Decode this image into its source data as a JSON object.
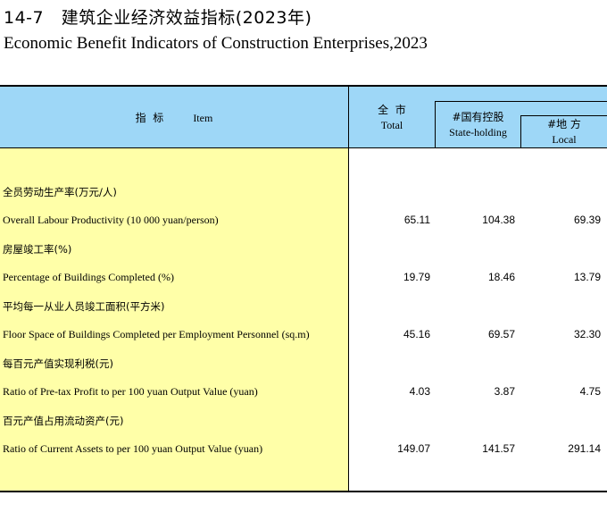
{
  "title": {
    "number": "14-7",
    "cn": "建筑企业经济效益指标(2023年)",
    "en": "Economic Benefit Indicators of Construction Enterprises,2023"
  },
  "header": {
    "item_cn": "指  标",
    "item_en": "Item",
    "total_cn": "全  市",
    "total_en": "Total",
    "state_cn": "#国有控股",
    "state_en": "State-holding",
    "local_cn": "#地 方",
    "local_en": "Local"
  },
  "rows": [
    {
      "cn": "全员劳动生产率(万元/人)",
      "en": "Overall Labour Productivity (10 000 yuan/person)",
      "total": "65.11",
      "state": "104.38",
      "local": "69.39"
    },
    {
      "cn": "房屋竣工率(%)",
      "en": "Percentage of Buildings Completed (%)",
      "total": "19.79",
      "state": "18.46",
      "local": "13.79"
    },
    {
      "cn": "平均每一从业人员竣工面积(平方米)",
      "en": "Floor Space of Buildings Completed per Employment Personnel (sq.m)",
      "total": "45.16",
      "state": "69.57",
      "local": "32.30"
    },
    {
      "cn": "每百元产值实现利税(元)",
      "en": "Ratio of Pre-tax Profit to per 100 yuan Output Value (yuan)",
      "total": "4.03",
      "state": "3.87",
      "local": "4.75"
    },
    {
      "cn": "百元产值占用流动资产(元)",
      "en": "Ratio of Current Assets to per 100 yuan Output Value (yuan)",
      "total": "149.07",
      "state": "141.57",
      "local": "291.14"
    }
  ]
}
